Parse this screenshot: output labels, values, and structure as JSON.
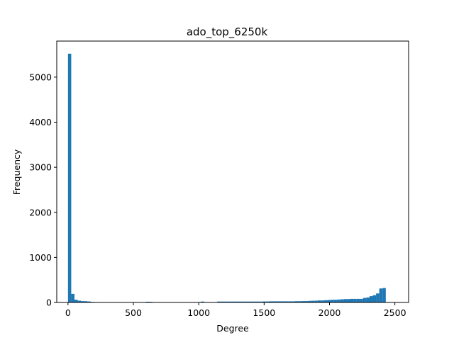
{
  "chart_data": {
    "type": "bar",
    "title": "ado_top_6250k",
    "xlabel": "Degree",
    "ylabel": "Frequency",
    "xlim": [
      -86,
      2605
    ],
    "ylim": [
      0,
      5800
    ],
    "xticks": [
      0,
      500,
      1000,
      1500,
      2000,
      2500
    ],
    "xtick_labels": [
      "0",
      "500",
      "1000",
      "1500",
      "2000",
      "2500"
    ],
    "yticks": [
      0,
      1000,
      2000,
      3000,
      4000,
      5000
    ],
    "ytick_labels": [
      "0",
      "1000",
      "2000",
      "3000",
      "4000",
      "5000"
    ],
    "bar_color": "#1f77b4",
    "bin_start": 0,
    "bin_width": 24.8,
    "values": [
      5520,
      190,
      60,
      40,
      30,
      28,
      22,
      12,
      8,
      7,
      7,
      6,
      6,
      6,
      5,
      5,
      5,
      4,
      3,
      3,
      2,
      2,
      2,
      2,
      16,
      14,
      2,
      2,
      2,
      5,
      5,
      5,
      5,
      5,
      5,
      5,
      5,
      5,
      5,
      5,
      5,
      20,
      8,
      8,
      8,
      8,
      20,
      20,
      20,
      20,
      20,
      20,
      20,
      20,
      20,
      20,
      20,
      20,
      20,
      20,
      22,
      22,
      25,
      25,
      25,
      25,
      25,
      25,
      25,
      25,
      28,
      28,
      30,
      30,
      35,
      38,
      40,
      45,
      45,
      50,
      55,
      60,
      60,
      65,
      70,
      75,
      75,
      80,
      80,
      80,
      80,
      100,
      110,
      140,
      160,
      200,
      310,
      320,
      2,
      0
    ],
    "grid": false,
    "legend": "none"
  }
}
